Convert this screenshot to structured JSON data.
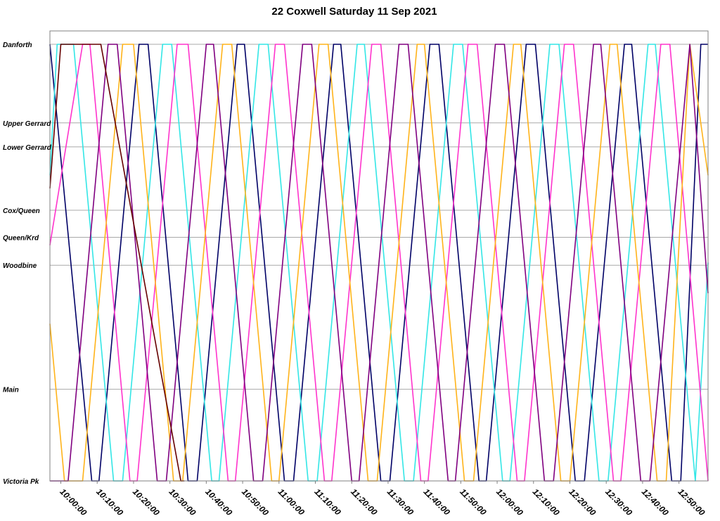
{
  "chart_data": {
    "type": "line",
    "title": "22 Coxwell Saturday 11 Sep 2021",
    "xlabel": "",
    "ylabel": "",
    "x_axis": {
      "unit": "time of day",
      "min": "09:57:00",
      "max": "12:58:00",
      "ticks": [
        "10:00:00",
        "10:10:00",
        "10:20:00",
        "10:30:00",
        "10:40:00",
        "10:50:00",
        "11:00:00",
        "11:10:00",
        "11:20:00",
        "11:30:00",
        "11:40:00",
        "11:50:00",
        "12:00:00",
        "12:10:00",
        "12:20:00",
        "12:30:00",
        "12:40:00",
        "12:50:00"
      ]
    },
    "y_axis": {
      "unit": "stop (route position)",
      "stops": [
        {
          "name": "Danforth",
          "pos": 0.0
        },
        {
          "name": "Upper Gerrard",
          "pos": 0.18
        },
        {
          "name": "Lower Gerrard",
          "pos": 0.235
        },
        {
          "name": "Cox/Queen",
          "pos": 0.38
        },
        {
          "name": "Queen/Krd",
          "pos": 0.442
        },
        {
          "name": "Woodbine",
          "pos": 0.506
        },
        {
          "name": "Main",
          "pos": 0.79
        },
        {
          "name": "Victoria Pk",
          "pos": 1.0
        }
      ]
    },
    "grid": true,
    "legend": "none",
    "series": [
      {
        "color": "#000066",
        "points": [
          [
            "09:57:00",
            0.0
          ],
          [
            "10:08:30",
            1.0
          ],
          [
            "10:10:30",
            1.0
          ],
          [
            "10:21:30",
            0.0
          ],
          [
            "10:24:00",
            0.0
          ],
          [
            "10:35:00",
            1.0
          ],
          [
            "10:37:30",
            1.0
          ],
          [
            "10:48:30",
            0.0
          ],
          [
            "10:50:30",
            0.0
          ],
          [
            "11:01:30",
            1.0
          ],
          [
            "11:04:00",
            1.0
          ],
          [
            "11:15:00",
            0.0
          ],
          [
            "11:17:00",
            0.0
          ],
          [
            "11:28:00",
            1.0
          ],
          [
            "11:30:30",
            1.0
          ],
          [
            "11:41:30",
            0.0
          ],
          [
            "11:44:00",
            0.0
          ],
          [
            "11:55:00",
            1.0
          ],
          [
            "11:57:00",
            1.0
          ],
          [
            "12:08:00",
            0.0
          ],
          [
            "12:10:30",
            0.0
          ],
          [
            "12:21:30",
            1.0
          ],
          [
            "12:24:00",
            1.0
          ],
          [
            "12:35:00",
            0.0
          ],
          [
            "12:37:00",
            0.0
          ],
          [
            "12:48:00",
            1.0
          ],
          [
            "12:50:30",
            1.0
          ],
          [
            "12:56:00",
            0.0
          ],
          [
            "12:58:00",
            0.0
          ]
        ]
      },
      {
        "color": "#33e6e6",
        "points": [
          [
            "09:57:00",
            0.3
          ],
          [
            "09:59:00",
            0.0
          ],
          [
            "10:03:30",
            0.0
          ],
          [
            "10:14:30",
            1.0
          ],
          [
            "10:17:00",
            1.0
          ],
          [
            "10:28:00",
            0.0
          ],
          [
            "10:30:30",
            0.0
          ],
          [
            "10:41:30",
            1.0
          ],
          [
            "10:43:30",
            1.0
          ],
          [
            "10:54:30",
            0.0
          ],
          [
            "10:57:00",
            0.0
          ],
          [
            "11:08:00",
            1.0
          ],
          [
            "11:10:30",
            1.0
          ],
          [
            "11:21:30",
            0.0
          ],
          [
            "11:23:30",
            0.0
          ],
          [
            "11:34:30",
            1.0
          ],
          [
            "11:37:00",
            1.0
          ],
          [
            "11:48:00",
            0.0
          ],
          [
            "11:50:30",
            0.0
          ],
          [
            "12:01:30",
            1.0
          ],
          [
            "12:03:30",
            1.0
          ],
          [
            "12:14:30",
            0.0
          ],
          [
            "12:17:00",
            0.0
          ],
          [
            "12:28:00",
            1.0
          ],
          [
            "12:30:30",
            1.0
          ],
          [
            "12:41:30",
            0.0
          ],
          [
            "12:43:30",
            0.0
          ],
          [
            "12:54:30",
            1.0
          ],
          [
            "12:58:00",
            0.5
          ]
        ]
      },
      {
        "color": "#ff33cc",
        "points": [
          [
            "09:57:00",
            0.46
          ],
          [
            "10:06:00",
            0.0
          ],
          [
            "10:08:00",
            0.0
          ],
          [
            "10:19:00",
            1.0
          ],
          [
            "10:21:00",
            1.0
          ],
          [
            "10:32:00",
            0.0
          ],
          [
            "10:35:00",
            0.0
          ],
          [
            "10:46:00",
            1.0
          ],
          [
            "10:48:00",
            1.0
          ],
          [
            "10:59:00",
            0.0
          ],
          [
            "11:01:30",
            0.0
          ],
          [
            "11:12:30",
            1.0
          ],
          [
            "11:14:30",
            1.0
          ],
          [
            "11:25:30",
            0.0
          ],
          [
            "11:28:00",
            0.0
          ],
          [
            "11:39:00",
            1.0
          ],
          [
            "11:41:00",
            1.0
          ],
          [
            "11:52:00",
            0.0
          ],
          [
            "11:54:30",
            0.0
          ],
          [
            "12:05:30",
            1.0
          ],
          [
            "12:07:30",
            1.0
          ],
          [
            "12:18:30",
            0.0
          ],
          [
            "12:21:00",
            0.0
          ],
          [
            "12:32:00",
            1.0
          ],
          [
            "12:34:00",
            1.0
          ],
          [
            "12:45:00",
            0.0
          ],
          [
            "12:47:30",
            0.0
          ],
          [
            "12:58:00",
            1.0
          ]
        ]
      },
      {
        "color": "#ffb31a",
        "points": [
          [
            "09:57:00",
            0.64
          ],
          [
            "10:01:00",
            1.0
          ],
          [
            "10:06:00",
            1.0
          ],
          [
            "10:17:00",
            0.0
          ],
          [
            "10:20:00",
            0.0
          ],
          [
            "10:31:00",
            1.0
          ],
          [
            "10:33:30",
            1.0
          ],
          [
            "10:44:30",
            0.0
          ],
          [
            "10:47:00",
            0.0
          ],
          [
            "10:58:00",
            1.0
          ],
          [
            "11:00:00",
            1.0
          ],
          [
            "11:11:00",
            0.0
          ],
          [
            "11:13:30",
            0.0
          ],
          [
            "11:24:30",
            1.0
          ],
          [
            "11:27:00",
            1.0
          ],
          [
            "11:38:00",
            0.0
          ],
          [
            "11:40:00",
            0.0
          ],
          [
            "11:51:00",
            1.0
          ],
          [
            "11:53:30",
            1.0
          ],
          [
            "12:04:30",
            0.0
          ],
          [
            "12:06:30",
            0.0
          ],
          [
            "12:17:30",
            1.0
          ],
          [
            "12:20:00",
            1.0
          ],
          [
            "12:31:00",
            0.0
          ],
          [
            "12:33:00",
            0.0
          ],
          [
            "12:44:00",
            1.0
          ],
          [
            "12:46:30",
            1.0
          ],
          [
            "12:53:00",
            0.0
          ],
          [
            "12:58:00",
            0.3
          ]
        ]
      },
      {
        "color": "#800080",
        "points": [
          [
            "09:57:00",
            1.0
          ],
          [
            "10:02:00",
            1.0
          ],
          [
            "10:13:00",
            0.0
          ],
          [
            "10:15:30",
            0.0
          ],
          [
            "10:26:30",
            1.0
          ],
          [
            "10:29:00",
            1.0
          ],
          [
            "10:40:00",
            0.0
          ],
          [
            "10:42:00",
            0.0
          ],
          [
            "10:53:00",
            1.0
          ],
          [
            "10:55:30",
            1.0
          ],
          [
            "11:06:30",
            0.0
          ],
          [
            "11:09:00",
            0.0
          ],
          [
            "11:20:00",
            1.0
          ],
          [
            "11:22:00",
            1.0
          ],
          [
            "11:33:00",
            0.0
          ],
          [
            "11:35:30",
            0.0
          ],
          [
            "11:46:30",
            1.0
          ],
          [
            "11:48:30",
            1.0
          ],
          [
            "11:59:30",
            0.0
          ],
          [
            "12:02:00",
            0.0
          ],
          [
            "12:13:00",
            1.0
          ],
          [
            "12:15:30",
            1.0
          ],
          [
            "12:26:30",
            0.0
          ],
          [
            "12:28:30",
            0.0
          ],
          [
            "12:39:30",
            1.0
          ],
          [
            "12:42:00",
            1.0
          ],
          [
            "12:53:00",
            0.0
          ],
          [
            "12:58:00",
            0.57
          ]
        ]
      },
      {
        "color": "#660000",
        "points": [
          [
            "09:57:00",
            0.33
          ],
          [
            "10:00:00",
            0.0
          ],
          [
            "10:11:00",
            0.0
          ],
          [
            "10:33:00",
            1.0
          ],
          [
            "10:34:00",
            1.0
          ]
        ]
      }
    ]
  }
}
